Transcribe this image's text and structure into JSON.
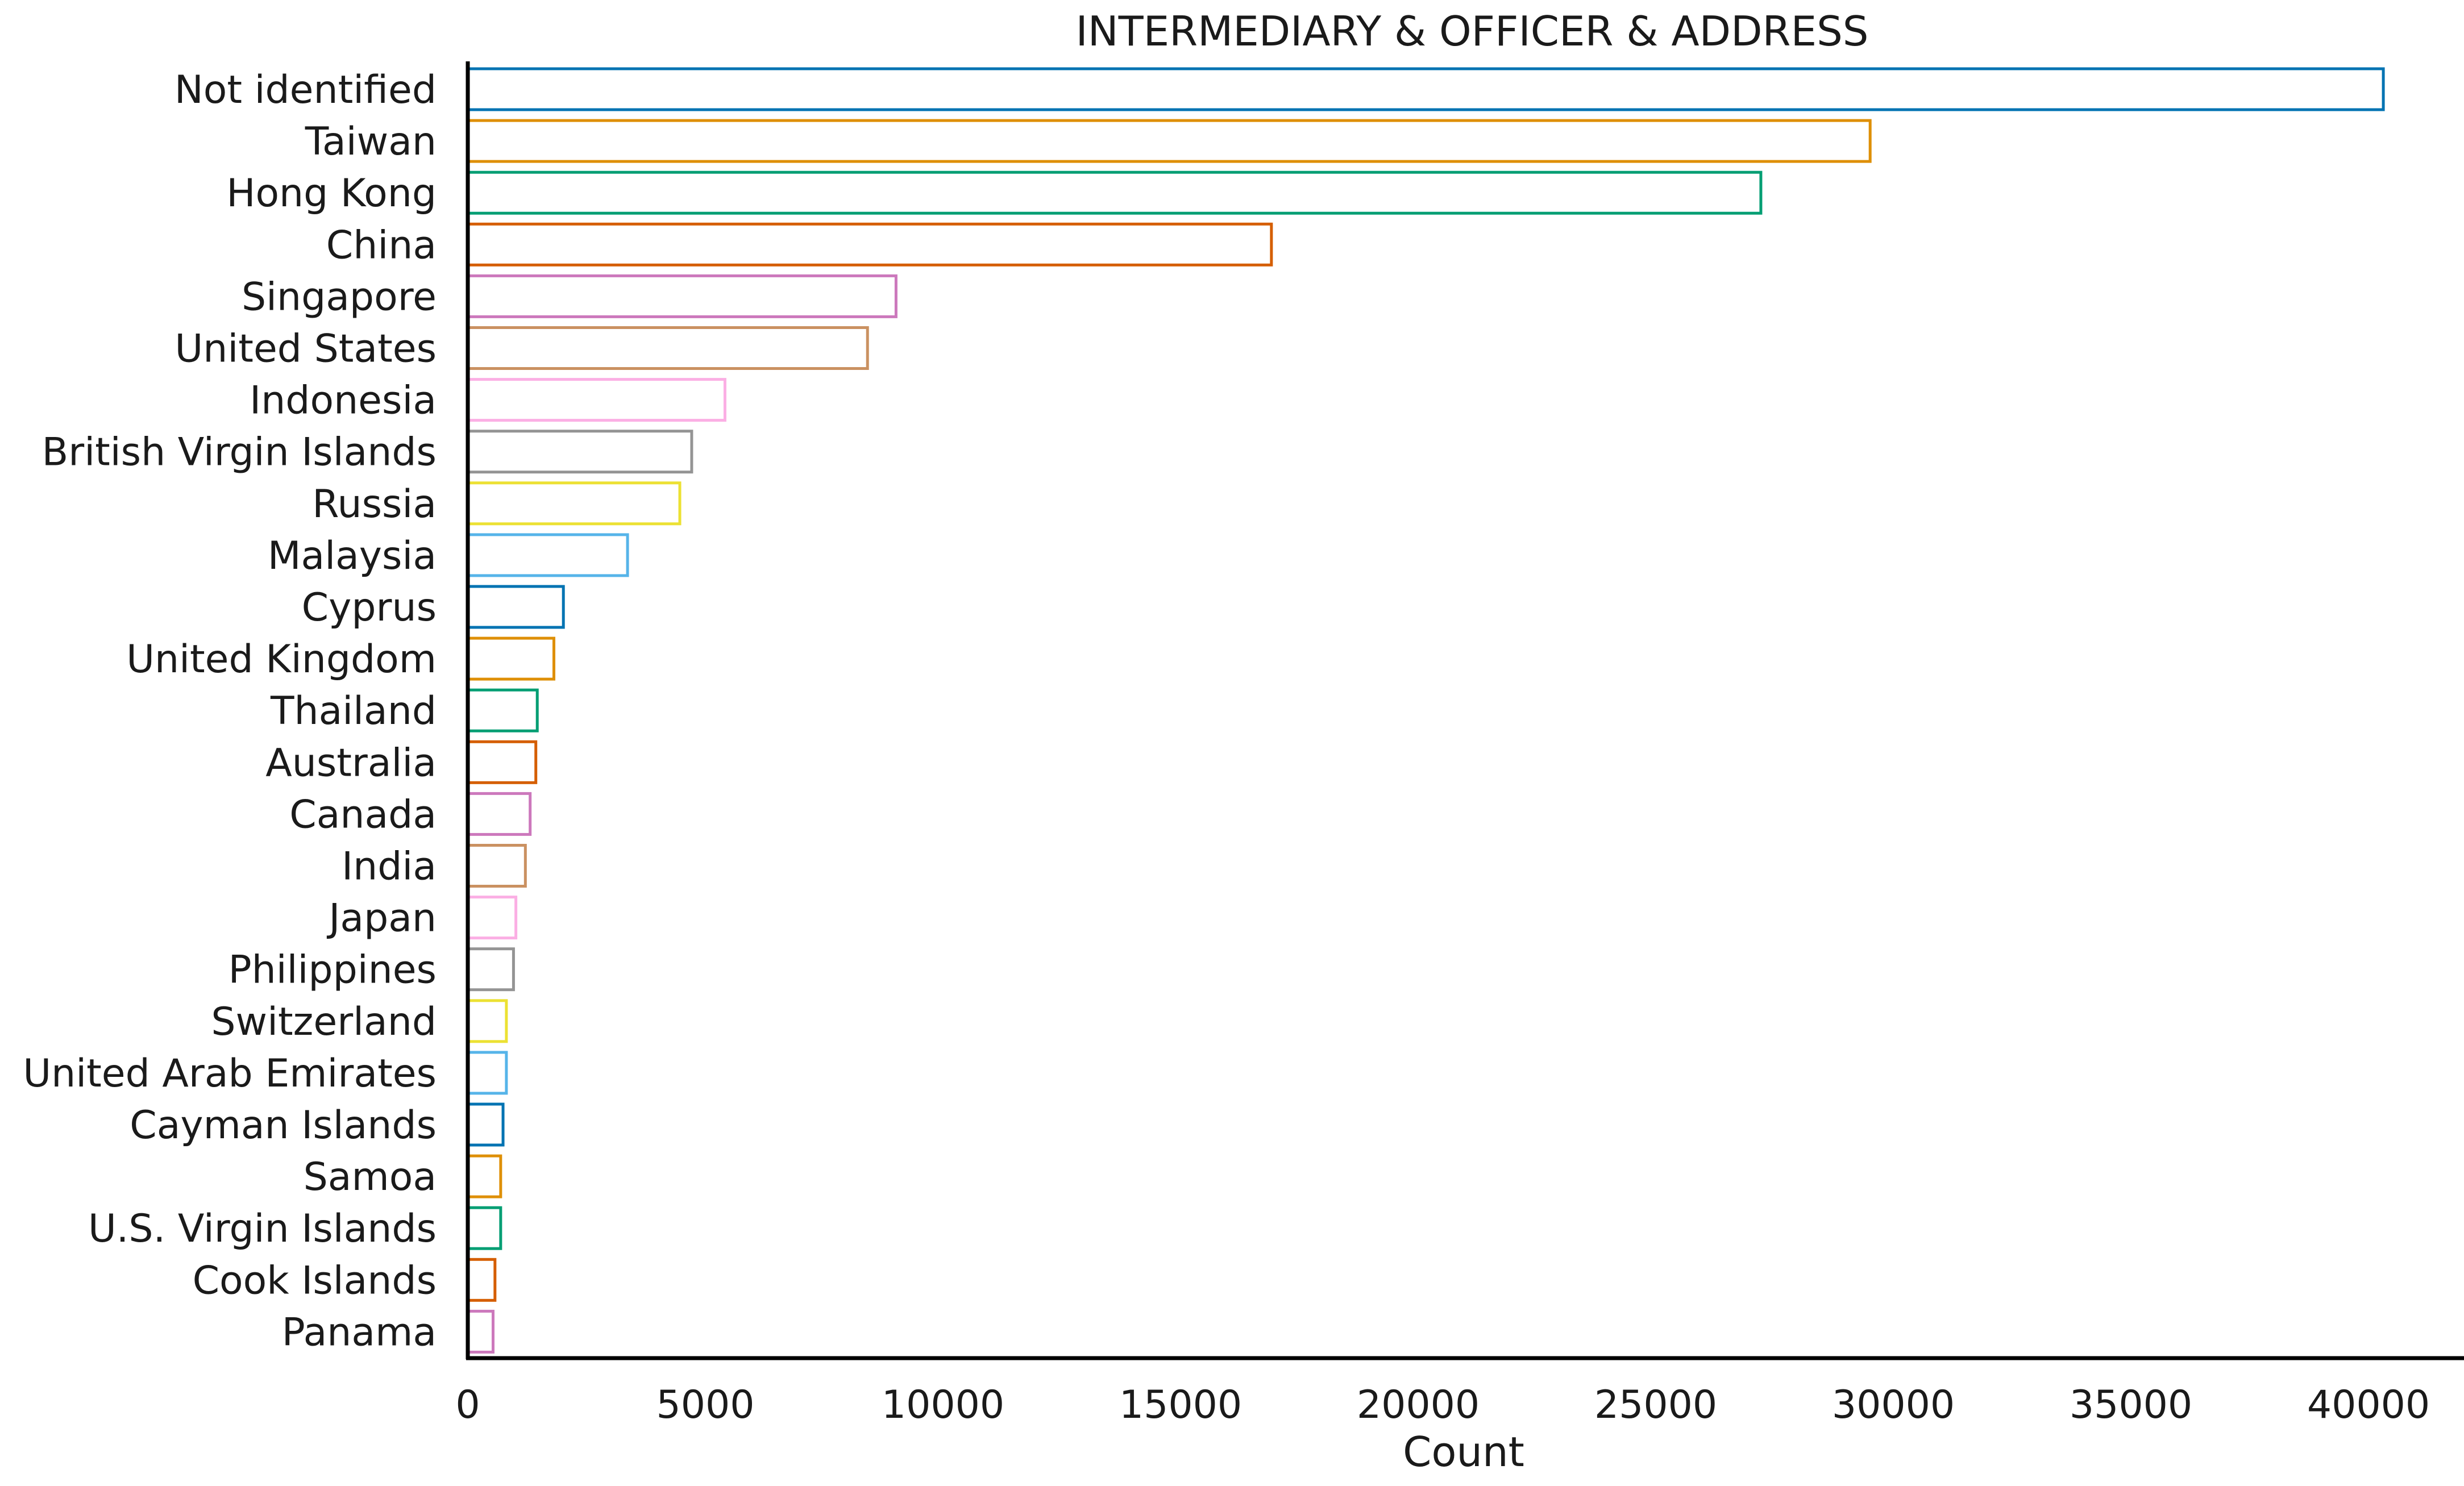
{
  "chart_data": {
    "type": "bar",
    "orientation": "horizontal",
    "title": "INTERMEDIARY &  OFFICER &  ADDRESS",
    "xlabel": "Count",
    "ylabel": "",
    "xlim": [
      0,
      42300
    ],
    "x_ticks": [
      0,
      5000,
      10000,
      15000,
      20000,
      25000,
      30000,
      35000,
      40000
    ],
    "x_tick_labels": [
      "0",
      "5000",
      "10000",
      "15000",
      "20000",
      "25000",
      "30000",
      "35000",
      "40000"
    ],
    "grid": false,
    "legend": "none",
    "categories": [
      "Not identified",
      "Taiwan",
      "Hong Kong",
      "China",
      "Singapore",
      "United States",
      "Indonesia",
      "British Virgin Islands",
      "Russia",
      "Malaysia",
      "Cyprus",
      "United Kingdom",
      "Thailand",
      "Australia",
      "Canada",
      "India",
      "Japan",
      "Philippines",
      "Switzerland",
      "United Arab Emirates",
      "Cayman Islands",
      "Samoa",
      "U.S. Virgin Islands",
      "Cook Islands",
      "Panama"
    ],
    "values": [
      40300,
      29500,
      27200,
      16900,
      9000,
      8400,
      5400,
      4700,
      4450,
      3350,
      2000,
      1800,
      1450,
      1420,
      1300,
      1200,
      1000,
      950,
      800,
      800,
      730,
      680,
      680,
      560,
      520
    ],
    "bar_colors": [
      "#0173b2",
      "#de8f05",
      "#029e73",
      "#d55e00",
      "#cc78bc",
      "#ca9161",
      "#fbafe4",
      "#949494",
      "#ece133",
      "#56b4e9",
      "#0173b2",
      "#de8f05",
      "#029e73",
      "#d55e00",
      "#cc78bc",
      "#ca9161",
      "#fbafe4",
      "#949494",
      "#ece133",
      "#56b4e9",
      "#0173b2",
      "#de8f05",
      "#029e73",
      "#d55e00",
      "#cc78bc"
    ],
    "bar_fill": "none",
    "axis_color": "#000000"
  }
}
